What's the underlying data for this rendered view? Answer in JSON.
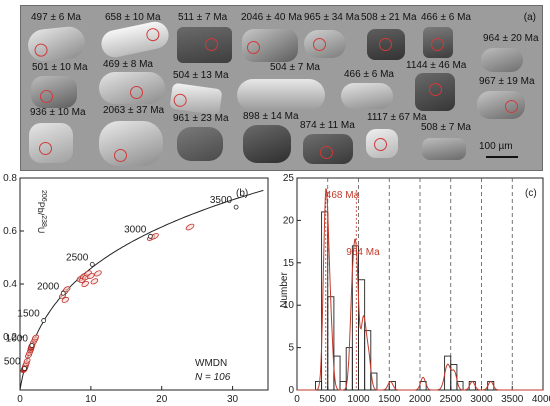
{
  "panel_a": {
    "label": "(a)",
    "scale_bar_label": "100 µm",
    "grains": [
      {
        "age": "497 ± 6 Ma"
      },
      {
        "age": "658 ± 10 Ma"
      },
      {
        "age": "511 ± 7 Ma"
      },
      {
        "age": "2046 ± 40 Ma"
      },
      {
        "age": "965 ± 34 Ma"
      },
      {
        "age": "508 ± 21 Ma"
      },
      {
        "age": "466 ± 6 Ma"
      },
      {
        "age": "964 ± 20 Ma"
      },
      {
        "age": "501 ± 10 Ma"
      },
      {
        "age": "469 ± 8 Ma"
      },
      {
        "age": "504 ± 13 Ma"
      },
      {
        "age": "504 ± 7 Ma"
      },
      {
        "age": "466 ± 6 Ma"
      },
      {
        "age": "1144 ± 46 Ma"
      },
      {
        "age": "967 ± 19 Ma"
      },
      {
        "age": "936 ± 10 Ma"
      },
      {
        "age": "2063 ± 37 Ma"
      },
      {
        "age": "961 ± 23 Ma"
      },
      {
        "age": "898 ± 14 Ma"
      },
      {
        "age": "874 ± 11 Ma"
      },
      {
        "age": "1117 ± 67 Ma"
      },
      {
        "age": "508 ± 7 Ma"
      }
    ]
  },
  "chart_data": [
    {
      "type": "scatter",
      "panel_label": "(b)",
      "xlabel": "",
      "ylabel": "206Pb/238U",
      "ylabel_main": "Pb",
      "ylabel_sup1": "206",
      "ylabel_sup2": "238",
      "ylabel_tail": "U",
      "xlim": [
        0,
        35
      ],
      "ylim": [
        0,
        0.8
      ],
      "x_ticks": [
        0,
        10,
        20,
        30
      ],
      "y_ticks": [
        0.2,
        0.4,
        0.6,
        0.8
      ],
      "sample_name": "WMDN",
      "n_label": "N = 106",
      "concordia_ages": [
        {
          "label": "500",
          "x": 0.64,
          "y": 0.081
        },
        {
          "label": "1000",
          "x": 1.68,
          "y": 0.168
        },
        {
          "label": "1500",
          "x": 3.34,
          "y": 0.262
        },
        {
          "label": "2000",
          "x": 6.1,
          "y": 0.365
        },
        {
          "label": "2500",
          "x": 10.2,
          "y": 0.474
        },
        {
          "label": "3000",
          "x": 18.4,
          "y": 0.58
        },
        {
          "label": "3500",
          "x": 30.5,
          "y": 0.69
        }
      ],
      "ellipses": [
        {
          "x": 0.55,
          "y": 0.075
        },
        {
          "x": 0.58,
          "y": 0.077
        },
        {
          "x": 0.6,
          "y": 0.079
        },
        {
          "x": 0.62,
          "y": 0.08
        },
        {
          "x": 0.64,
          "y": 0.081
        },
        {
          "x": 0.66,
          "y": 0.083
        },
        {
          "x": 0.7,
          "y": 0.085
        },
        {
          "x": 0.75,
          "y": 0.089
        },
        {
          "x": 0.8,
          "y": 0.094
        },
        {
          "x": 0.9,
          "y": 0.1
        },
        {
          "x": 1.0,
          "y": 0.11
        },
        {
          "x": 1.2,
          "y": 0.13
        },
        {
          "x": 1.35,
          "y": 0.14
        },
        {
          "x": 1.5,
          "y": 0.15
        },
        {
          "x": 1.55,
          "y": 0.156
        },
        {
          "x": 1.58,
          "y": 0.16
        },
        {
          "x": 1.6,
          "y": 0.162
        },
        {
          "x": 1.65,
          "y": 0.166
        },
        {
          "x": 1.7,
          "y": 0.169
        },
        {
          "x": 1.9,
          "y": 0.18
        },
        {
          "x": 2.1,
          "y": 0.19
        },
        {
          "x": 2.2,
          "y": 0.198
        },
        {
          "x": 6.0,
          "y": 0.355
        },
        {
          "x": 6.3,
          "y": 0.37
        },
        {
          "x": 6.6,
          "y": 0.38
        },
        {
          "x": 6.4,
          "y": 0.34
        },
        {
          "x": 8.5,
          "y": 0.42
        },
        {
          "x": 8.8,
          "y": 0.415
        },
        {
          "x": 9.0,
          "y": 0.43
        },
        {
          "x": 9.3,
          "y": 0.425
        },
        {
          "x": 9.6,
          "y": 0.44
        },
        {
          "x": 10.0,
          "y": 0.43
        },
        {
          "x": 10.5,
          "y": 0.41
        },
        {
          "x": 11.0,
          "y": 0.44
        },
        {
          "x": 9.2,
          "y": 0.4
        },
        {
          "x": 18.5,
          "y": 0.575
        },
        {
          "x": 19.0,
          "y": 0.58
        },
        {
          "x": 24.0,
          "y": 0.615
        }
      ]
    },
    {
      "type": "bar",
      "panel_label": "(c)",
      "xlabel": "",
      "ylabel": "Number",
      "xlim": [
        0,
        4000
      ],
      "ylim": [
        0,
        25
      ],
      "x_ticks": [
        0,
        500,
        1000,
        1500,
        2000,
        2500,
        3000,
        3500,
        4000
      ],
      "y_ticks": [
        0,
        5,
        10,
        15,
        20,
        25
      ],
      "bin_width": 100,
      "bins": [
        {
          "x": 200,
          "value": 0
        },
        {
          "x": 300,
          "value": 1
        },
        {
          "x": 400,
          "value": 21
        },
        {
          "x": 500,
          "value": 11
        },
        {
          "x": 600,
          "value": 4
        },
        {
          "x": 700,
          "value": 1
        },
        {
          "x": 800,
          "value": 5
        },
        {
          "x": 900,
          "value": 17
        },
        {
          "x": 1000,
          "value": 13
        },
        {
          "x": 1100,
          "value": 7
        },
        {
          "x": 1200,
          "value": 2
        },
        {
          "x": 1300,
          "value": 0
        },
        {
          "x": 1400,
          "value": 0
        },
        {
          "x": 1500,
          "value": 1
        },
        {
          "x": 1600,
          "value": 0
        },
        {
          "x": 2000,
          "value": 1
        },
        {
          "x": 2400,
          "value": 4
        },
        {
          "x": 2500,
          "value": 3
        },
        {
          "x": 2600,
          "value": 1
        },
        {
          "x": 2700,
          "value": 0
        },
        {
          "x": 2800,
          "value": 1
        },
        {
          "x": 3000,
          "value": 0
        },
        {
          "x": 3100,
          "value": 1
        }
      ],
      "peaks": [
        {
          "label": "468 Ma",
          "x": 468
        },
        {
          "label": "964 Ma",
          "x": 964
        }
      ],
      "density_peaks": [
        {
          "x": 468,
          "height": 22,
          "width": 40
        },
        {
          "x": 540,
          "height": 8,
          "width": 40
        },
        {
          "x": 900,
          "height": 10,
          "width": 40
        },
        {
          "x": 964,
          "height": 14,
          "width": 40
        },
        {
          "x": 1080,
          "height": 8,
          "width": 40
        },
        {
          "x": 1160,
          "height": 4,
          "width": 40
        },
        {
          "x": 1520,
          "height": 1,
          "width": 40
        },
        {
          "x": 2050,
          "height": 1.5,
          "width": 40
        },
        {
          "x": 2450,
          "height": 3,
          "width": 50
        },
        {
          "x": 2560,
          "height": 2,
          "width": 40
        },
        {
          "x": 2850,
          "height": 1,
          "width": 40
        },
        {
          "x": 3150,
          "height": 1,
          "width": 40
        }
      ]
    }
  ]
}
